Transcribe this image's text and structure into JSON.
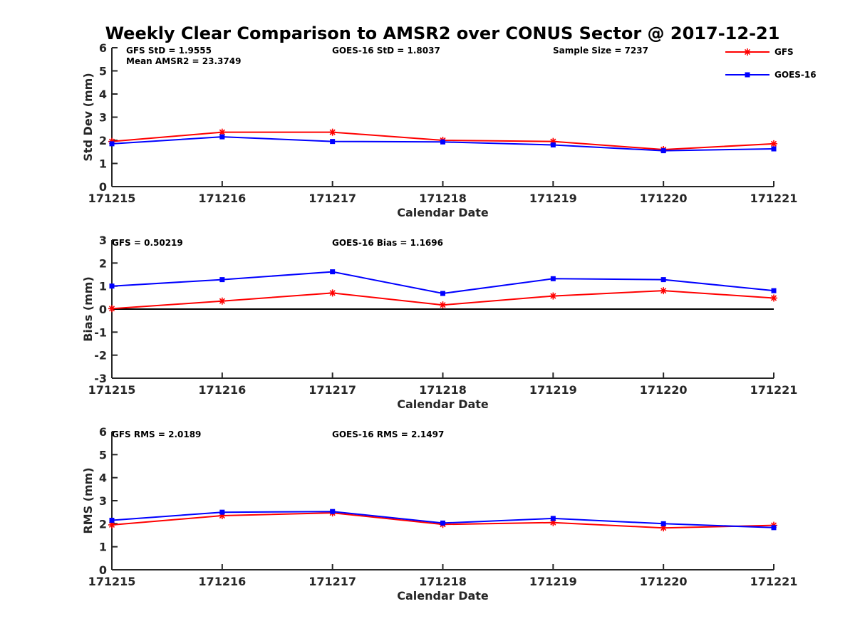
{
  "title": "Weekly Clear Comparison to AMSR2 over CONUS Sector @ 2017-12-21",
  "legend": {
    "location": "top-right",
    "entries": [
      {
        "name": "GFS",
        "color": "#ff0000",
        "marker": "asterisk"
      },
      {
        "name": "GOES-16",
        "color": "#0000ff",
        "marker": "square"
      }
    ]
  },
  "chart_data": [
    {
      "type": "line",
      "xlabel": "Calendar Date",
      "ylabel": "Std Dev (mm)",
      "ylim": [
        0,
        6
      ],
      "yticks": [
        "0",
        "1",
        "2",
        "3",
        "4",
        "5",
        "6"
      ],
      "categories": [
        "171215",
        "171216",
        "171217",
        "171218",
        "171219",
        "171220",
        "171221"
      ],
      "zero_line": false,
      "annotations": [
        {
          "text": "GFS StD = 1.9555"
        },
        {
          "text": "Mean AMSR2 = 23.3749"
        },
        {
          "text": "GOES-16 StD = 1.8037"
        },
        {
          "text": "Sample Size = 7237"
        }
      ],
      "series": [
        {
          "name": "GFS",
          "values": [
            1.95,
            2.35,
            2.35,
            2.0,
            1.95,
            1.6,
            1.85
          ]
        },
        {
          "name": "GOES-16",
          "values": [
            1.85,
            2.15,
            1.95,
            1.93,
            1.8,
            1.55,
            1.63
          ]
        }
      ]
    },
    {
      "type": "line",
      "xlabel": "Calendar Date",
      "ylabel": "Bias (mm)",
      "ylim": [
        -3,
        3
      ],
      "yticks": [
        "-3",
        "-2",
        "-1",
        "0",
        "1",
        "2",
        "3"
      ],
      "categories": [
        "171215",
        "171216",
        "171217",
        "171218",
        "171219",
        "171220",
        "171221"
      ],
      "zero_line": true,
      "annotations": [
        {
          "text": "GFS = 0.50219"
        },
        {
          "text": "GOES-16 Bias  = 1.1696"
        }
      ],
      "series": [
        {
          "name": "GFS",
          "values": [
            0.02,
            0.35,
            0.7,
            0.18,
            0.57,
            0.8,
            0.48
          ]
        },
        {
          "name": "GOES-16",
          "values": [
            1.0,
            1.28,
            1.62,
            0.68,
            1.32,
            1.28,
            0.8
          ]
        }
      ]
    },
    {
      "type": "line",
      "xlabel": "Calendar Date",
      "ylabel": "RMS (mm)",
      "ylim": [
        0,
        6
      ],
      "yticks": [
        "0",
        "1",
        "2",
        "3",
        "4",
        "5",
        "6"
      ],
      "categories": [
        "171215",
        "171216",
        "171217",
        "171218",
        "171219",
        "171220",
        "171221"
      ],
      "zero_line": false,
      "annotations": [
        {
          "text": "GFS RMS = 2.0189"
        },
        {
          "text": "GOES-16 RMS = 2.1497"
        }
      ],
      "series": [
        {
          "name": "GFS",
          "values": [
            1.95,
            2.35,
            2.47,
            1.97,
            2.05,
            1.82,
            1.93
          ]
        },
        {
          "name": "GOES-16",
          "values": [
            2.15,
            2.5,
            2.53,
            2.03,
            2.23,
            2.0,
            1.83
          ]
        }
      ]
    }
  ]
}
